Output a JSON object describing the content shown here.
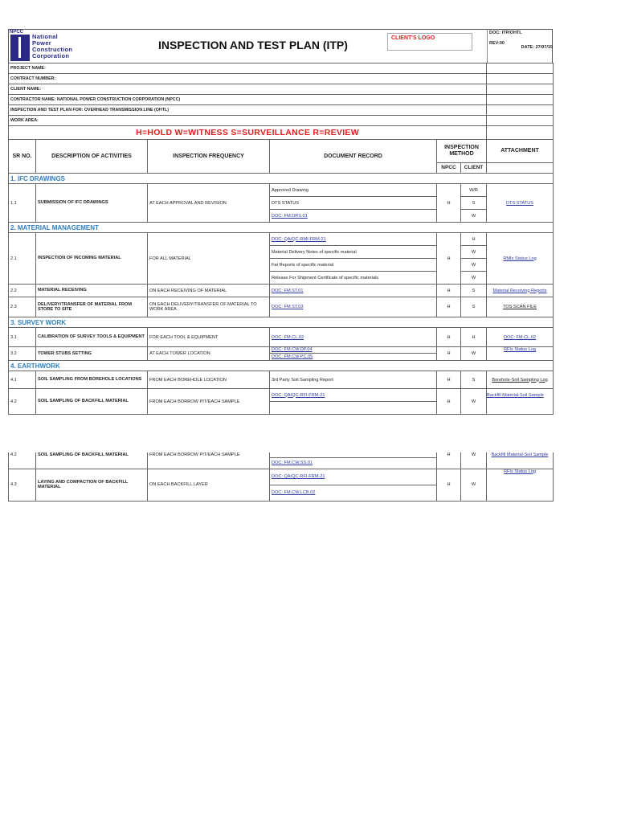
{
  "header": {
    "logo_abbr": "NPCC",
    "logo_name": [
      "National",
      "Power",
      "Construction",
      "Corporation"
    ],
    "title": "INSPECTION AND TEST PLAN (ITP)",
    "client_logo": "CLIENT'S LOGO",
    "doc": "DOC: ITP/OHTL",
    "rev": "REV:00",
    "date": "DATE: 27/07/19"
  },
  "info": [
    "PROJECT NAME:",
    "CONTRACT NUMBER:",
    "CLIENT NAME:",
    "CONTRACTOR NAME: NATIONAL POWER CONSTRUCTION CORPORATION (NPCC)",
    "INSPECTION AND TEST PLAN FOR: OVERHEAD TRANSMISSION LINE (OHTL)",
    "WORK AREA:"
  ],
  "legend": "H=HOLD    W=WITNESS    S=SURVEILLANCE     R=REVIEW",
  "columns": {
    "sr": "SR NO.",
    "desc": "DESCRIPTION OF ACTIVITIES",
    "freq": "INSPECTION FREQUENCY",
    "doc": "DOCUMENT RECORD",
    "method": "INSPECTION METHOD",
    "npcc": "NPCC",
    "client": "CLIENT",
    "attach": "ATTACHMENT"
  },
  "sections": [
    "1. IFC DRAWINGS",
    "2. MATERIAL MANAGEMENT",
    "3. SURVEY WORK",
    "4. EARTHWORK"
  ],
  "rows": {
    "r11": {
      "sr": "1.1",
      "desc": "SUBMISSION OF IFC DRAWINGS",
      "freq": "AT EACH APPROVAL AND REVISION",
      "docs": [
        "Approved Drawing",
        "DTS STATUS",
        "DOC: FM.DRS.01"
      ],
      "npcc": "H",
      "client": [
        "W/R",
        "S",
        "W"
      ],
      "attach": "DTS STATUS"
    },
    "r21": {
      "sr": "2.1",
      "desc": "INSPECTION OF INCOMING MATERIAL",
      "freq": "FOR ALL MATERIAL",
      "docs": [
        "DOC: QA/QC-RMI-FRM-21",
        "Material Delivery Notes of specific material",
        "Fat Reports of specific material",
        "Release For Shipment Certificate of specific materials"
      ],
      "npcc": "H",
      "client": [
        "H",
        "W",
        "W",
        "W"
      ],
      "attach": "RMIs Status Log"
    },
    "r22": {
      "sr": "2.2",
      "desc": "MATERIAL RECEIVING",
      "freq": "ON EACH RECEIVING OF MATERIAL",
      "doc": "DOC: FM.ST.01",
      "npcc": "H",
      "client": "S",
      "attach": "Material Receiving Reports"
    },
    "r23": {
      "sr": "2.3",
      "desc": "DELIVERY/TRANSFER OF MATERIAL FROM STORE TO SITE",
      "freq": "ON EACH DELIVERY/TRANSFER OF MATERIAL TO WORK AREA",
      "doc": "DOC: FM.ST.03",
      "npcc": "H",
      "client": "S",
      "attach": "TOS SCAN FILE"
    },
    "r31": {
      "sr": "3.1",
      "desc": "CALIBRATION OF SURVEY TOOLS & EQUIPMENT",
      "freq": "FOR EACH TOOL & EQUIPMENT",
      "doc": "DOC: FM.CL.02",
      "npcc": "H",
      "client": "H",
      "attach": "DOC: FM.CL.02"
    },
    "r32": {
      "sr": "3.2",
      "desc": "TOWER STUBS SETTING",
      "freq": "AT EACH TOWER LOCATION",
      "docs": [
        "DOC: FM.CW.DP.04",
        "DOC: FM.CW.PC.05"
      ],
      "npcc": "H",
      "client": "W",
      "attach": "RFIs Status Log"
    },
    "r41": {
      "sr": "4.1",
      "desc": "SOIL SAMPLING FROM BOREHOLE LOCATIONS",
      "freq": "FROM EACH BOREHOLE LOCATION",
      "doc": "3rd Party Soil Sampling Report",
      "npcc": "H",
      "client": "S",
      "attach": "Borehole-Soil Sampling Log"
    },
    "r42": {
      "sr": "4.2",
      "desc": "SOIL SAMPLING OF BACKFILL MATERIAL",
      "freq": "FROM EACH BORROW PIT/EACH SAMPLE",
      "docs": [
        "DOC: QA/QC-RFI-FRM-21",
        "DOC: FM.CW.SS.01"
      ],
      "npcc": "H",
      "client": "W",
      "attach": "Backfill Material-Soil Sample"
    },
    "r43": {
      "sr": "4.3",
      "desc": "LAYING AND COMPACTION OF BACKFILL MATERIAL",
      "freq": "ON EACH BACKFILL LAYER",
      "docs": [
        "DOC: QA/QC-RFI-FRM-21",
        "DOC: FM.CW.LCB.02"
      ],
      "npcc": "H",
      "client": "W",
      "attach": "RFIs Status Log"
    }
  },
  "colors": {
    "legend": "#e02020",
    "section": "#2f7fc1",
    "link": "#2b3aa0",
    "logo": "#2a2a86"
  }
}
